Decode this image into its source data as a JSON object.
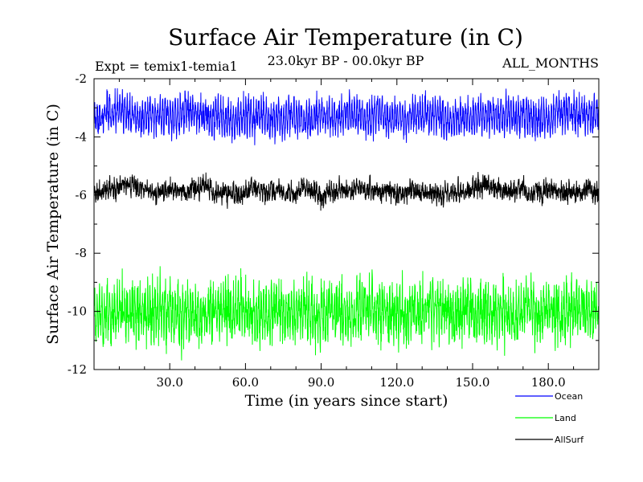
{
  "chart_data": {
    "type": "line",
    "title": "Surface Air Temperature (in C)",
    "subtitle": "23.0kyr BP - 00.0kyr BP",
    "experiment": "Expt = temix1-temia1",
    "period": "ALL_MONTHS",
    "xlabel": "Time (in years since start)",
    "ylabel": "Surface Air Temperature (in C)",
    "xlim": [
      0,
      200
    ],
    "ylim": [
      -12,
      -2
    ],
    "x_ticks": [
      {
        "value": 30,
        "label": "30.0"
      },
      {
        "value": 60,
        "label": "60.0"
      },
      {
        "value": 90,
        "label": "90.0"
      },
      {
        "value": 120,
        "label": "120.0"
      },
      {
        "value": 150,
        "label": "150.0"
      },
      {
        "value": 180,
        "label": "180.0"
      }
    ],
    "y_ticks": [
      {
        "value": -2,
        "label": "-2"
      },
      {
        "value": -4,
        "label": "-4"
      },
      {
        "value": -6,
        "label": "-6"
      },
      {
        "value": -8,
        "label": "-8"
      },
      {
        "value": -10,
        "label": "-10"
      },
      {
        "value": -12,
        "label": "-12"
      }
    ],
    "samples_per_year": 12,
    "series": [
      {
        "name": "Ocean",
        "color": "#0000ff",
        "mean": -3.3,
        "seasonal_amplitude": 0.45,
        "noise": 0.28,
        "observed_min": -4.6,
        "observed_max": -2.3,
        "seed": 11
      },
      {
        "name": "Land",
        "color": "#00ff00",
        "mean": -10.0,
        "seasonal_amplitude": 0.55,
        "noise": 0.55,
        "observed_min": -11.8,
        "observed_max": -8.3,
        "seed": 23
      },
      {
        "name": "AllSurf",
        "color": "#000000",
        "mean": -5.85,
        "seasonal_amplitude": 0.12,
        "noise": 0.22,
        "observed_min": -6.7,
        "observed_max": -5.0,
        "seed": 37
      }
    ]
  }
}
